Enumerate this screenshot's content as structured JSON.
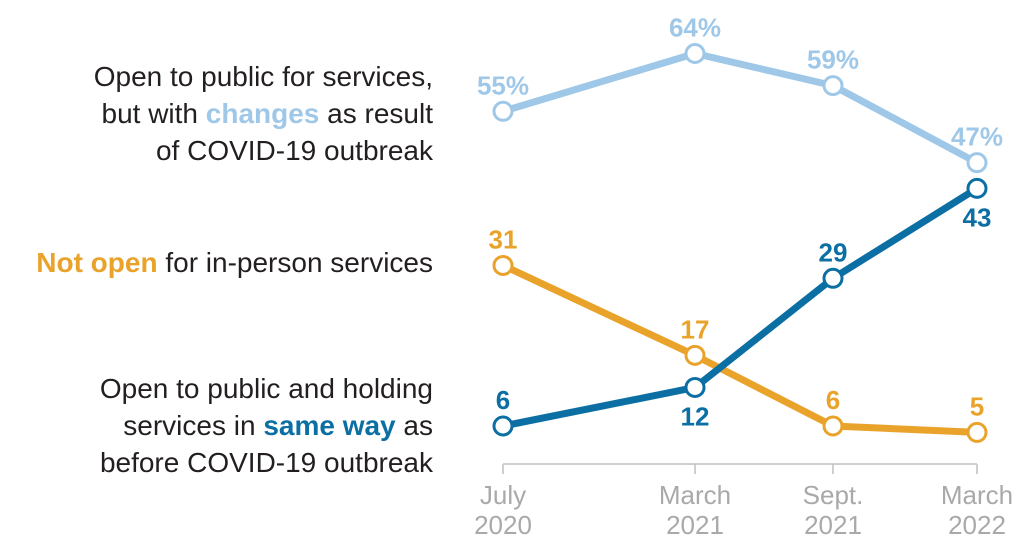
{
  "legend": {
    "changes": {
      "line1": "Open to public for services,",
      "line2_pre": "but with ",
      "line2_hl": "changes",
      "line2_post": " as result",
      "line3": "of COVID-19 outbreak"
    },
    "not_open": {
      "hl": "Not open",
      "post": " for in-person services"
    },
    "same_way": {
      "line1": "Open to public and holding",
      "line2_pre": "services in ",
      "line2_hl": "same way",
      "line2_post": " as",
      "line3": "before COVID-19 outbreak"
    }
  },
  "colors": {
    "changes": "#9fc8e8",
    "not_open": "#e9a32b",
    "same_way": "#0b6fa4",
    "axis": "#bfbfbf",
    "tick_label": "#a9a9a9",
    "legend_text": "#231f20"
  },
  "chart_data": {
    "type": "line",
    "x": [
      {
        "line1": "July",
        "line2": "2020"
      },
      {
        "line1": "March",
        "line2": "2021"
      },
      {
        "line1": "Sept.",
        "line2": "2021"
      },
      {
        "line1": "March",
        "line2": "2022"
      }
    ],
    "x_dates": [
      "2020-07",
      "2021-03",
      "2021-09",
      "2022-03"
    ],
    "ylim": [
      0,
      70
    ],
    "series": [
      {
        "key": "changes",
        "values": [
          55,
          64,
          59,
          47
        ],
        "labels": [
          "55%",
          "64%",
          "59%",
          "47%"
        ],
        "label_pos": [
          "above",
          "above",
          "above",
          "above"
        ]
      },
      {
        "key": "not_open",
        "values": [
          31,
          17,
          6,
          5
        ],
        "labels": [
          "31",
          "17",
          "6",
          "5"
        ],
        "label_pos": [
          "above",
          "above",
          "above",
          "above"
        ]
      },
      {
        "key": "same_way",
        "values": [
          6,
          12,
          29,
          43
        ],
        "labels": [
          "6",
          "12",
          "29",
          "43"
        ],
        "label_pos": [
          "above",
          "below",
          "above",
          "below"
        ]
      }
    ]
  }
}
